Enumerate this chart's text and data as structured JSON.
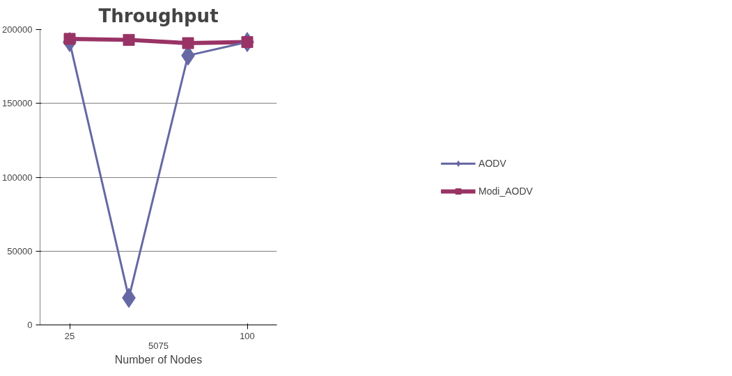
{
  "chart_data": {
    "type": "line",
    "title": "Throughput",
    "xlabel": "Number of Nodes",
    "x": [
      25,
      50,
      75,
      100
    ],
    "xlim": [
      12.5,
      112.5
    ],
    "xticks": [
      25,
      100
    ],
    "annotations": [
      "5075"
    ],
    "ylim": [
      0,
      200000
    ],
    "yticks": [
      0,
      50000,
      100000,
      150000,
      200000
    ],
    "grid": "y",
    "legend": "right",
    "series": [
      {
        "name": "AODV",
        "color": "#6668a4",
        "marker": "diamond",
        "values": [
          191500,
          18300,
          182400,
          191500
        ]
      },
      {
        "name": "Modi_AODV",
        "color": "#993366",
        "marker": "square",
        "values": [
          193700,
          193000,
          190800,
          191500
        ]
      }
    ]
  }
}
